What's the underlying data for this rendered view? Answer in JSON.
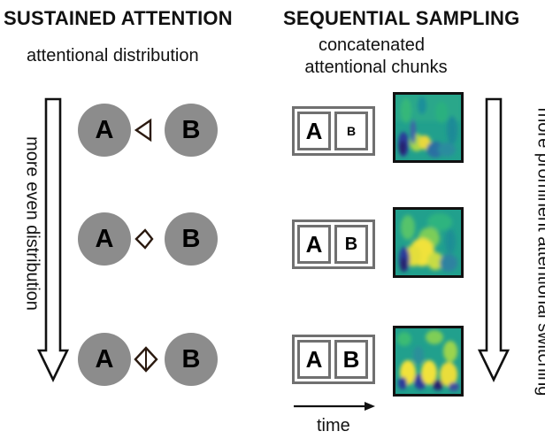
{
  "colors": {
    "circle_fill": "#8c8c8c",
    "chunk_border": "#707070",
    "heatmap_teal": "#21a08d",
    "heatmap_blue": "#2b3a9a",
    "heatmap_yellow": "#f1e23a"
  },
  "left_panel": {
    "heading": "SUSTAINED ATTENTION",
    "subtitle": "attentional distribution",
    "axis_label": "more even distribution",
    "rows": [
      {
        "left": "A",
        "right": "B",
        "marker": "triangle-left-icon"
      },
      {
        "left": "A",
        "right": "B",
        "marker": "diamond-skewed-icon"
      },
      {
        "left": "A",
        "right": "B",
        "marker": "diamond-icon"
      }
    ]
  },
  "right_panel": {
    "heading": "SEQUENTIAL SAMPLING",
    "subtitle_line1": "concatenated",
    "subtitle_line2": "attentional chunks",
    "axis_label": "more prominent attentional switching",
    "time_label": "time",
    "rows": [
      {
        "chunk_a": "A",
        "chunk_b": "B",
        "b_size": "small"
      },
      {
        "chunk_a": "A",
        "chunk_b": "B",
        "b_size": "medium"
      },
      {
        "chunk_a": "A",
        "chunk_b": "B",
        "b_size": "large"
      }
    ]
  }
}
